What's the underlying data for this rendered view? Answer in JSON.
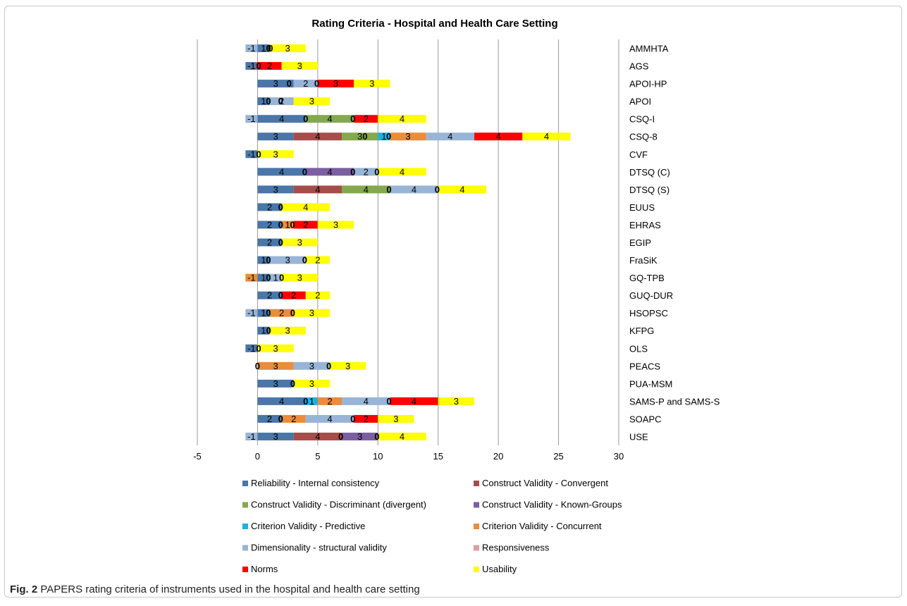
{
  "caption": {
    "label": "Fig. 2",
    "text": "PAPERS rating criteria of instruments used in the hospital and health care setting"
  },
  "chart_data": {
    "type": "bar",
    "orientation": "horizontal",
    "stacked": true,
    "title": "Rating Criteria - Hospital and Health Care Setting",
    "xlim": [
      -5,
      30
    ],
    "xticks": [
      -5,
      0,
      5,
      10,
      15,
      20,
      25,
      30
    ],
    "grid": "vertical",
    "legend_position": "bottom",
    "categories": [
      "AMMHTA",
      "AGS",
      "APOI-HP",
      "APOI",
      "CSQ-I",
      "CSQ-8",
      "CVF",
      "DTSQ (C)",
      "DTSQ (S)",
      "EUUS",
      "EHRAS",
      "EGIP",
      "FraSiK",
      "GQ-TPB",
      "GUQ-DUR",
      "HSOPSC",
      "KFPG",
      "OLS",
      "PEACS",
      "PUA-MSM",
      "SAMS-P and SAMS-S",
      "SOAPC",
      "USE"
    ],
    "series": [
      {
        "name": "Reliability - Internal consistency",
        "color": "#4a76a8",
        "values": [
          1,
          -1,
          3,
          1,
          4,
          3,
          -1,
          4,
          3,
          2,
          2,
          2,
          1,
          1,
          2,
          1,
          1,
          -1,
          0,
          3,
          4,
          2,
          3
        ]
      },
      {
        "name": "Construct Validity - Convergent",
        "color": "#a64d4a",
        "values": [
          null,
          null,
          null,
          null,
          null,
          4,
          null,
          null,
          4,
          null,
          null,
          null,
          null,
          null,
          null,
          null,
          null,
          null,
          null,
          null,
          null,
          null,
          4
        ]
      },
      {
        "name": "Construct Validity - Discriminant (divergent)",
        "color": "#84a84d",
        "values": [
          null,
          null,
          null,
          null,
          4,
          3,
          null,
          null,
          4,
          null,
          null,
          null,
          null,
          null,
          null,
          null,
          null,
          null,
          null,
          null,
          null,
          null,
          null
        ]
      },
      {
        "name": "Construct Validity - Known-Groups",
        "color": "#7b5fa0",
        "values": [
          null,
          null,
          null,
          null,
          null,
          null,
          null,
          4,
          null,
          null,
          null,
          null,
          null,
          null,
          null,
          null,
          null,
          null,
          null,
          null,
          null,
          null,
          3
        ]
      },
      {
        "name": "Criterion Validity - Predictive",
        "color": "#1fb0df",
        "values": [
          null,
          null,
          null,
          null,
          null,
          1,
          null,
          null,
          null,
          null,
          null,
          null,
          null,
          null,
          null,
          null,
          null,
          null,
          null,
          null,
          1,
          null,
          null
        ]
      },
      {
        "name": "Criterion Validity - Concurrent",
        "color": "#e98c3c",
        "values": [
          null,
          null,
          null,
          null,
          null,
          3,
          null,
          null,
          null,
          null,
          1,
          null,
          null,
          -1,
          null,
          2,
          null,
          null,
          3,
          null,
          2,
          2,
          null
        ]
      },
      {
        "name": "Dimensionality - structural validity",
        "color": "#98b4d6",
        "values": [
          -1,
          null,
          2,
          2,
          -1,
          4,
          null,
          2,
          4,
          null,
          null,
          null,
          3,
          1,
          null,
          -1,
          null,
          null,
          3,
          null,
          4,
          4,
          -1
        ]
      },
      {
        "name": "Responsiveness",
        "color": "#d9a0a0",
        "values": [
          null,
          null,
          null,
          null,
          null,
          null,
          null,
          null,
          null,
          null,
          null,
          null,
          null,
          null,
          null,
          null,
          null,
          null,
          null,
          null,
          null,
          null,
          null
        ]
      },
      {
        "name": "Norms",
        "color": "#ff0000",
        "values": [
          null,
          2,
          3,
          null,
          2,
          4,
          null,
          null,
          null,
          null,
          2,
          null,
          null,
          null,
          2,
          null,
          null,
          null,
          null,
          null,
          4,
          2,
          null
        ]
      },
      {
        "name": "Usability",
        "color": "#ffff00",
        "values": [
          3,
          3,
          3,
          3,
          4,
          4,
          3,
          4,
          4,
          4,
          3,
          3,
          2,
          3,
          2,
          3,
          3,
          3,
          3,
          3,
          3,
          3,
          4
        ]
      }
    ],
    "zero_labels": [
      [
        0.92,
        1.08
      ],
      [
        0.1
      ],
      [
        2.62,
        4.92
      ],
      [
        0.9,
        1.92
      ],
      [
        4.0,
        7.92
      ],
      [
        8.92,
        10.9
      ],
      [
        0.1
      ],
      [
        3.92,
        7.92,
        9.92
      ],
      [
        10.92,
        14.92
      ],
      [
        1.92
      ],
      [
        1.92,
        2.9
      ],
      [
        1.92
      ],
      [
        0.9,
        3.92
      ],
      [
        0.9,
        2.0
      ],
      [
        1.92
      ],
      [
        0.9,
        2.92
      ],
      [
        0.92
      ],
      [
        0.1
      ],
      [
        0.0,
        5.92
      ],
      [
        2.92
      ],
      [
        4.0,
        10.92
      ],
      [
        1.92,
        7.92
      ],
      [
        6.92,
        9.92
      ]
    ]
  }
}
